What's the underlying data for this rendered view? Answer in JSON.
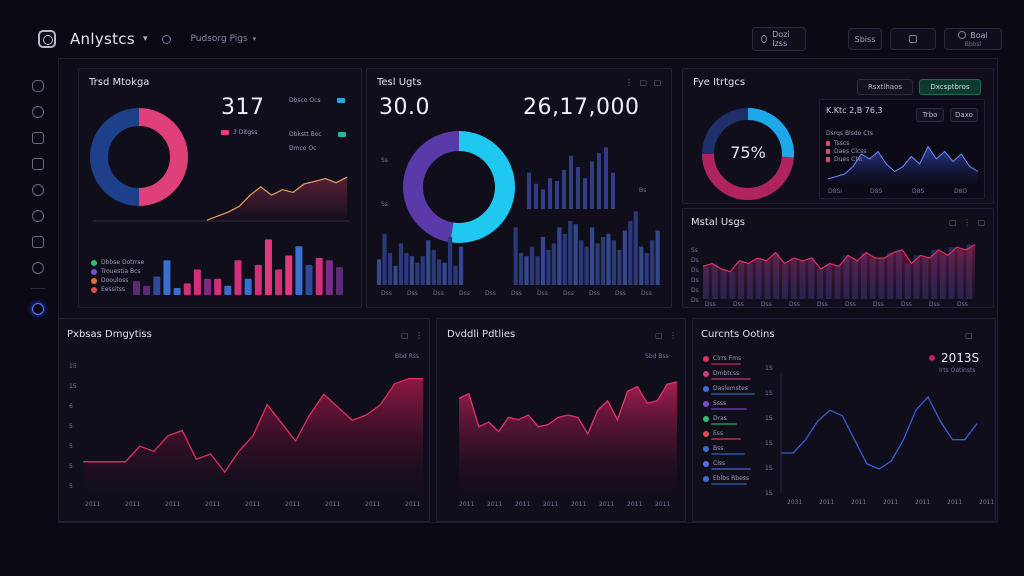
{
  "header": {
    "app_title": "Anlystcs",
    "breadcrumb": "Pudsorg Pigs",
    "buttons": [
      {
        "label": "Dozi Izss",
        "icon": "clock-icon"
      },
      {
        "label": "Sbiss",
        "icon": "grid-icon"
      },
      {
        "label": "",
        "icon": "bookmark-icon"
      },
      {
        "label": "Boal",
        "icon": "user-icon"
      }
    ],
    "user_sub": "Bbbsl"
  },
  "sidebar": {
    "icons": [
      "dashboard-icon",
      "clock-icon",
      "folder-icon",
      "chart-icon",
      "tag-icon",
      "globe-icon",
      "inbox-icon",
      "cloud-icon",
      "settings-icon"
    ]
  },
  "panels": {
    "trend": {
      "title": "Trsd Mtokga",
      "value": "317",
      "legend_right": [
        "Dbsco Ocs",
        "Dbkstt Boc",
        "Dmco Oc"
      ],
      "legend_sub": "3 Ditgss",
      "legend_left": [
        "Dbbse Dotrrse",
        "Trouestia Bcs",
        "Doouloss",
        "Eessitss"
      ],
      "accent_pink": "#e0407a",
      "accent_blue": "#1e3f8a"
    },
    "test": {
      "title": "Tesl Ugts",
      "controls": "⋮ ▢ ▢",
      "value_left": "30.0",
      "value_right": "26,17,000",
      "axis_labels": [
        "Ss",
        "Ss",
        "Bs"
      ],
      "x_ticks": [
        "Dss",
        "Dss",
        "Dss",
        "Dss",
        "Dss",
        "Dss",
        "Dss",
        "Dss",
        "Dss",
        "Dss",
        "Dss"
      ]
    },
    "eye": {
      "title": "Fye Itrtgcs",
      "btn_a": "Rsxtlhaos",
      "btn_b": "Dxcsptbros",
      "gauge_value": "75%",
      "gauge_pct": 75,
      "mini": {
        "title": "K.Ktc 2,B 76,3",
        "labels": [
          "Dsrqs Blsdo Cts",
          "Tsscs",
          "Daes Clcss",
          "Dues Ctw"
        ],
        "buttons": [
          "Trbo",
          "Daxo"
        ],
        "x_ticks": [
          "D8Si",
          "D8S",
          "D8S",
          "D8O"
        ]
      }
    },
    "metal": {
      "title": "Mstal Usgs",
      "controls": "▢ ⋮ ▢",
      "y_ticks": [
        "Ss",
        "Ds",
        "Ds",
        "Ds",
        "Ds",
        "Ds"
      ],
      "x_ticks": [
        "Dss",
        "Dss",
        "Dss",
        "Dss",
        "Dss",
        "Dss",
        "Dss",
        "Dss",
        "Dss",
        "Dss"
      ]
    },
    "pulse": {
      "title": "Pxbsas Dmgytiss",
      "controls": "▢ ⋮",
      "tag": "Bbd Rss",
      "y_ticks": [
        "15",
        "15",
        "6",
        "5",
        "5",
        "5",
        "5"
      ],
      "x_ticks": [
        "2011",
        "2011",
        "2011",
        "2011",
        "2011",
        "2011",
        "2011",
        "2011",
        "2011"
      ]
    },
    "double": {
      "title": "Dvddli Pdtlies",
      "controls": "▢ ⋮",
      "tag": "Sbd Bss",
      "x_ticks": [
        "2011",
        "2011",
        "2011",
        "2011",
        "2011",
        "2011",
        "2011",
        "2011"
      ]
    },
    "currents": {
      "title": "Curcnts Ootins",
      "controls": "▢",
      "value": "2013S",
      "sub": "Irts Ootinsts",
      "list": [
        "Clrrs Fms",
        "Dmbtcss",
        "Daslemstes",
        "Ssss",
        "Dras",
        "Ess",
        "Bss",
        "Clss",
        "Eblbs Rbess"
      ],
      "y_ticks": [
        "1S",
        "1S",
        "1S",
        "1S",
        "1S",
        "1S"
      ],
      "x_ticks": [
        "2031",
        "2011",
        "2011",
        "2011",
        "2011",
        "2011",
        "2011"
      ]
    }
  },
  "chart_data": [
    {
      "type": "bar",
      "panel": "trend",
      "values": [
        12,
        8,
        16,
        30,
        6,
        10,
        22,
        14,
        14,
        8,
        30,
        14,
        26,
        48,
        22,
        34,
        42,
        26,
        32,
        30,
        24
      ],
      "colors": [
        "#5a2a78",
        "#5a2a78",
        "#2f4a9b",
        "#3a6fd0",
        "#3a6fd0",
        "#d0307a",
        "#d0307a",
        "#7a2a88",
        "#d0307a",
        "#3a6fd0",
        "#d0307a",
        "#3a6fd0",
        "#d0307a",
        "#e03a7e",
        "#d0307a",
        "#e03a7e",
        "#3a6fd0",
        "#2f4a9b",
        "#d0307a",
        "#7a2a88",
        "#5a2a78"
      ]
    },
    {
      "type": "line",
      "panel": "trend",
      "values": [
        2,
        5,
        8,
        12,
        20,
        26,
        20,
        24,
        22,
        28,
        30,
        32,
        29,
        33
      ]
    },
    {
      "type": "bar",
      "panel": "test",
      "values": [
        16,
        32,
        20,
        12,
        26,
        20,
        18,
        14,
        18,
        28,
        22,
        16,
        14,
        30,
        12,
        24,
        26,
        22,
        18,
        34,
        36,
        28,
        22,
        26,
        30,
        36,
        20,
        18,
        24,
        18,
        30,
        22,
        26,
        36,
        32,
        40,
        38,
        28,
        24,
        36,
        26,
        30,
        32,
        28,
        22,
        34,
        40,
        46,
        24,
        20,
        28,
        34
      ],
      "secondary": [
        26,
        18,
        14,
        22,
        20,
        28,
        38,
        30,
        22,
        34,
        40,
        44,
        26
      ]
    },
    {
      "type": "area",
      "panel": "metal",
      "values": [
        24,
        26,
        22,
        20,
        28,
        26,
        30,
        28,
        34,
        26,
        30,
        28,
        30,
        22,
        26,
        24,
        32,
        28,
        34,
        30,
        30,
        34,
        36,
        26,
        32,
        30,
        36,
        32,
        38,
        36,
        40
      ]
    },
    {
      "type": "area",
      "panel": "pulse",
      "values": [
        24,
        24,
        24,
        24,
        36,
        32,
        44,
        48,
        26,
        30,
        16,
        32,
        44,
        68,
        54,
        40,
        60,
        76,
        66,
        56,
        60,
        68,
        84,
        88,
        88
      ]
    },
    {
      "type": "area",
      "panel": "double",
      "values": [
        80,
        84,
        56,
        60,
        52,
        64,
        62,
        66,
        56,
        58,
        64,
        66,
        64,
        50,
        70,
        78,
        62,
        86,
        90,
        76,
        78,
        92,
        94
      ]
    },
    {
      "type": "line",
      "panel": "currents",
      "values": [
        30,
        30,
        40,
        54,
        62,
        58,
        40,
        22,
        18,
        24,
        40,
        62,
        72,
        54,
        40,
        40,
        52
      ]
    },
    {
      "type": "area",
      "panel": "eye-mini",
      "values": [
        4,
        6,
        8,
        14,
        24,
        20,
        26,
        16,
        10,
        14,
        22,
        16,
        30,
        20,
        26,
        18,
        24,
        14,
        10
      ]
    }
  ]
}
